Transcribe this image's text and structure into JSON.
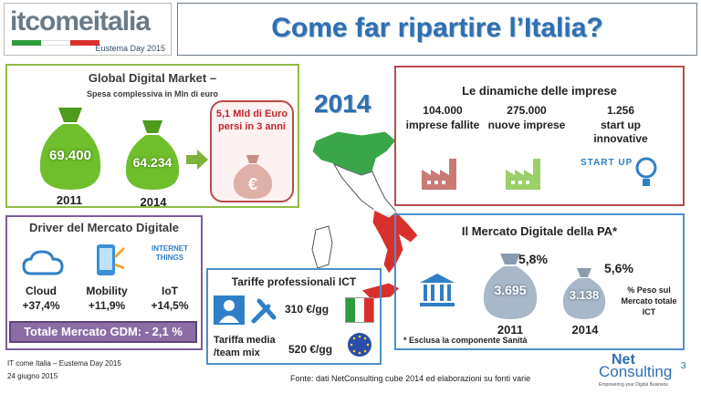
{
  "header": {
    "logo_text": "itcomeitalia",
    "logo_sub": "Eustema Day 2015",
    "title": "Come far ripartire l’Italia?"
  },
  "year_badge": "2014",
  "global": {
    "title": "Global Digital Market –",
    "subtitle": "Spesa complessiva in Mln di euro",
    "bags": [
      {
        "value": "69.400",
        "year": "2011"
      },
      {
        "value": "64.234",
        "year": "2014"
      }
    ],
    "loss_text": "5,1 Mld di Euro persi in 3 anni"
  },
  "imprese": {
    "title": "Le dinamiche  delle imprese",
    "items": [
      {
        "num": "104.000",
        "label": "imprese fallite"
      },
      {
        "num": "275.000",
        "label": "nuove imprese"
      },
      {
        "num": "1.256",
        "label": "start up innovative"
      }
    ],
    "startup_logo": "START UP"
  },
  "driver": {
    "title": "Driver del Mercato Digitale",
    "items": [
      {
        "label": "Cloud",
        "value": "+37,4%",
        "icon": "cloud-icon"
      },
      {
        "label": "Mobility",
        "value": "+11,9%",
        "icon": "mobile-icon"
      },
      {
        "label": "IoT",
        "value": "+14,5%",
        "icon": "iot-icon"
      }
    ],
    "iot_badge": "INTERNET THINGS",
    "total": "Totale Mercato GDM: - 2,1 %"
  },
  "tariffe": {
    "title": "Tariffe professionali  ICT",
    "label": "Tariffa media /team mix",
    "rows": [
      {
        "value": "310 €/gg",
        "flag": "italy-flag"
      },
      {
        "value": "520 €/gg",
        "flag": "eu-flag"
      }
    ]
  },
  "pa": {
    "title": "Il Mercato Digitale della PA*",
    "bags": [
      {
        "value": "3.695",
        "year": "2011",
        "pct": "5,8%"
      },
      {
        "value": "3.138",
        "year": "2014",
        "pct": "5,6%"
      }
    ],
    "peso": "% Peso sul Mercato totale ICT",
    "note": "* Esclusa la componente Sanità"
  },
  "footer": {
    "left1": "IT come Italia – Eustema Day 2015",
    "left2": "24 giugno 2015",
    "source": "Fonte: dati NetConsulting cube 2014  ed elaborazioni su fonti varie",
    "brand1": "Net",
    "brand2": "Consulting",
    "brand_sup": "3",
    "brand_tag": "Empowering your Digital Business"
  },
  "colors": {
    "green": "#8fba46",
    "red": "#b94b4b",
    "purple": "#7c5c9a",
    "blue": "#4d8fcb",
    "title_blue": "#2f6fb0"
  }
}
